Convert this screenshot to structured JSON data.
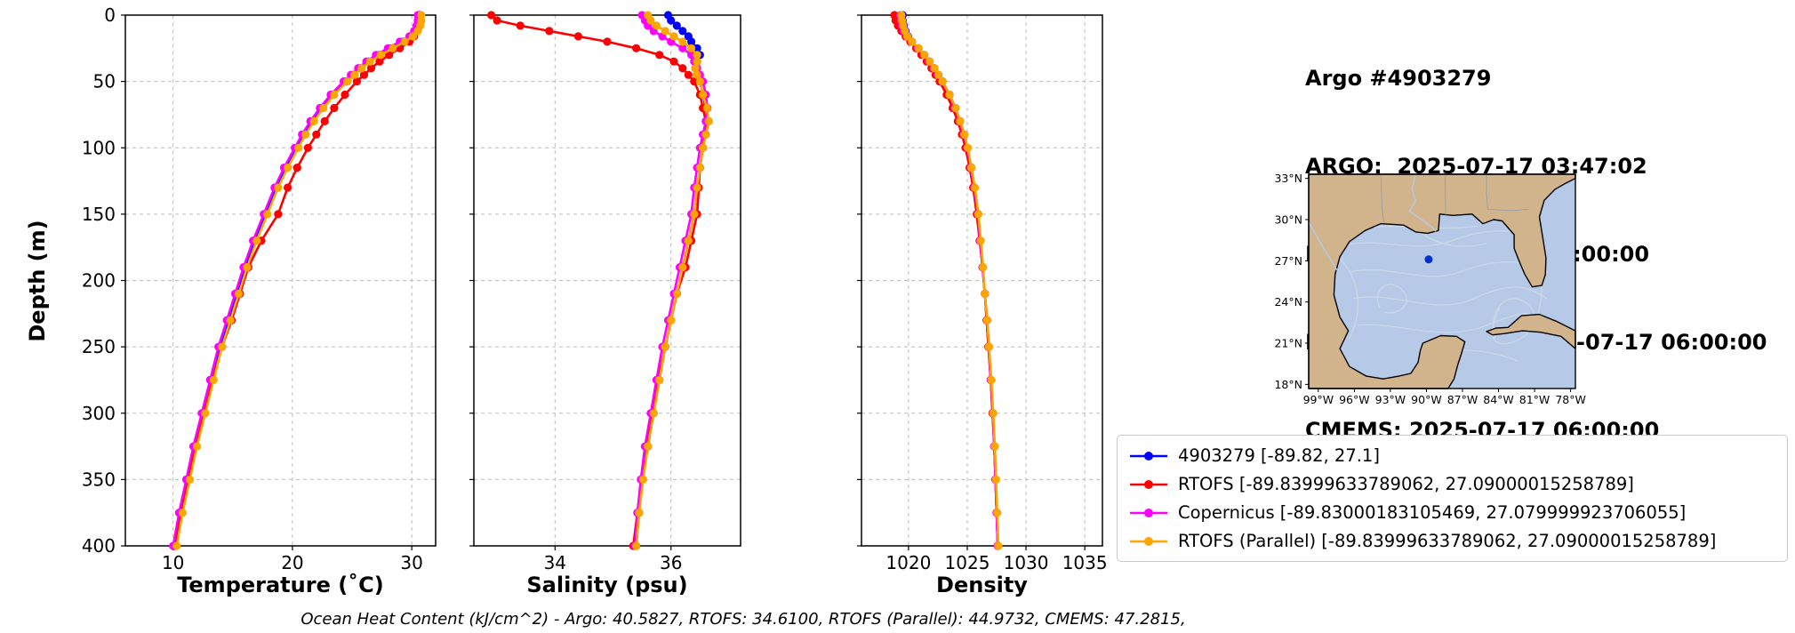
{
  "header": {
    "lines": [
      "Argo #4903279",
      "ARGO:  2025-07-17 03:47:02",
      "RTOFS: 2025-07-17 00:00:00",
      "RTOFS (Parallel): 2025-07-17 06:00:00",
      "CMEMS: 2025-07-17 06:00:00"
    ]
  },
  "axes": {
    "ylabel": "Depth (m)",
    "ylim": [
      0,
      400
    ],
    "depth_ticks": [
      0,
      50,
      100,
      150,
      200,
      250,
      300,
      350,
      400
    ]
  },
  "chart_data": {
    "type": "line",
    "orientation": "vertical-profile",
    "grid": "dashed",
    "depth_m": [
      0,
      4,
      8,
      12,
      16,
      20,
      25,
      30,
      35,
      40,
      45,
      50,
      60,
      70,
      80,
      90,
      100,
      115,
      130,
      150,
      170,
      190,
      210,
      230,
      250,
      275,
      300,
      325,
      350,
      375,
      400
    ],
    "panels": [
      {
        "id": "temperature",
        "xlabel": "Temperature (˚C)",
        "xlim": [
          6,
          32
        ],
        "xticks": [
          10,
          20,
          30
        ]
      },
      {
        "id": "salinity",
        "xlabel": "Salinity (psu)",
        "xlim": [
          32.6,
          37.2
        ],
        "xticks": [
          34,
          36
        ]
      },
      {
        "id": "density",
        "xlabel": "Density",
        "xlim": [
          1016,
          1036.5
        ],
        "xticks": [
          1020,
          1025,
          1030,
          1035
        ]
      }
    ],
    "series": [
      {
        "name": "4903279",
        "color": "#0000ff",
        "temperature": [
          30.7,
          30.7,
          30.6,
          30.4,
          30.0,
          29.3,
          28.3,
          27.3,
          26.4,
          25.7,
          25.1,
          24.5,
          23.4,
          22.5,
          21.7,
          21.0,
          20.4,
          19.5,
          18.7,
          17.8,
          16.9,
          16.1,
          15.4,
          14.7,
          14.0,
          13.3,
          12.6,
          11.9,
          11.3,
          10.7,
          10.2
        ],
        "salinity": [
          35.95,
          36.0,
          36.1,
          36.2,
          36.3,
          36.35,
          36.45,
          36.5,
          36.45,
          36.42,
          36.45,
          36.5,
          36.55,
          36.6,
          36.65,
          36.6,
          36.55,
          36.5,
          36.45,
          36.4,
          36.3,
          36.2,
          36.1,
          36.0,
          35.9,
          35.8,
          35.7,
          35.6,
          35.5,
          35.45,
          35.4
        ],
        "density": [
          1019.5,
          1019.5,
          1019.6,
          1019.75,
          1019.95,
          1020.3,
          1020.85,
          1021.35,
          1021.8,
          1022.2,
          1022.55,
          1022.9,
          1023.5,
          1024.0,
          1024.4,
          1024.75,
          1025.0,
          1025.35,
          1025.6,
          1025.9,
          1026.1,
          1026.3,
          1026.5,
          1026.65,
          1026.8,
          1027.0,
          1027.15,
          1027.3,
          1027.4,
          1027.5,
          1027.6
        ]
      },
      {
        "name": "RTOFS",
        "color": "#ff0000",
        "temperature": [
          30.6,
          30.6,
          30.5,
          30.4,
          30.2,
          29.8,
          29.0,
          28.1,
          27.3,
          26.6,
          26.0,
          25.4,
          24.4,
          23.5,
          22.7,
          22.0,
          21.3,
          20.4,
          19.6,
          18.8,
          17.4,
          16.3,
          15.6,
          14.9,
          14.1,
          13.3,
          12.6,
          11.9,
          11.2,
          10.6,
          10.1
        ],
        "salinity": [
          32.9,
          33.0,
          33.4,
          33.9,
          34.4,
          34.9,
          35.4,
          35.8,
          36.05,
          36.2,
          36.3,
          36.4,
          36.5,
          36.55,
          36.6,
          36.58,
          36.55,
          36.5,
          36.48,
          36.45,
          36.35,
          36.25,
          36.1,
          36.0,
          35.9,
          35.78,
          35.68,
          35.58,
          35.5,
          35.42,
          35.35
        ],
        "density": [
          1018.8,
          1018.9,
          1019.1,
          1019.4,
          1019.75,
          1020.15,
          1020.65,
          1021.1,
          1021.55,
          1021.95,
          1022.3,
          1022.65,
          1023.25,
          1023.75,
          1024.2,
          1024.55,
          1024.85,
          1025.2,
          1025.5,
          1025.8,
          1026.05,
          1026.3,
          1026.5,
          1026.65,
          1026.8,
          1027.0,
          1027.15,
          1027.3,
          1027.4,
          1027.5,
          1027.6
        ]
      },
      {
        "name": "Copernicus",
        "color": "#ff00ff",
        "temperature": [
          30.5,
          30.5,
          30.4,
          30.2,
          29.8,
          29.0,
          28.0,
          27.0,
          26.2,
          25.5,
          24.9,
          24.3,
          23.2,
          22.3,
          21.5,
          20.8,
          20.2,
          19.3,
          18.5,
          17.6,
          16.7,
          15.9,
          15.2,
          14.5,
          13.8,
          13.1,
          12.4,
          11.7,
          11.1,
          10.5,
          10.0
        ],
        "salinity": [
          35.5,
          35.55,
          35.6,
          35.7,
          35.85,
          36.0,
          36.2,
          36.35,
          36.4,
          36.45,
          36.5,
          36.55,
          36.6,
          36.63,
          36.6,
          36.55,
          36.5,
          36.45,
          36.4,
          36.35,
          36.25,
          36.15,
          36.05,
          35.95,
          35.85,
          35.75,
          35.65,
          35.55,
          35.48,
          35.42,
          35.38
        ],
        "density": [
          1019.3,
          1019.35,
          1019.45,
          1019.6,
          1019.85,
          1020.25,
          1020.8,
          1021.3,
          1021.75,
          1022.15,
          1022.5,
          1022.85,
          1023.45,
          1023.95,
          1024.35,
          1024.7,
          1025.0,
          1025.3,
          1025.6,
          1025.9,
          1026.1,
          1026.3,
          1026.5,
          1026.7,
          1026.85,
          1027.0,
          1027.2,
          1027.3,
          1027.4,
          1027.5,
          1027.6
        ]
      },
      {
        "name": "RTOFS (Parallel)",
        "color": "#ffa500",
        "temperature": [
          30.8,
          30.8,
          30.7,
          30.5,
          30.1,
          29.4,
          28.4,
          27.4,
          26.5,
          25.8,
          25.2,
          24.6,
          23.5,
          22.6,
          21.8,
          21.1,
          20.5,
          19.6,
          18.8,
          17.9,
          17.0,
          16.2,
          15.5,
          14.8,
          14.1,
          13.4,
          12.7,
          12.0,
          11.4,
          10.8,
          10.3
        ],
        "salinity": [
          35.6,
          35.65,
          35.75,
          35.9,
          36.05,
          36.2,
          36.35,
          36.45,
          36.45,
          36.42,
          36.45,
          36.5,
          36.55,
          36.62,
          36.65,
          36.6,
          36.55,
          36.5,
          36.45,
          36.4,
          36.3,
          36.2,
          36.1,
          36.0,
          35.9,
          35.8,
          35.7,
          35.6,
          35.52,
          35.45,
          35.4
        ],
        "density": [
          1019.4,
          1019.45,
          1019.55,
          1019.7,
          1019.9,
          1020.3,
          1020.85,
          1021.35,
          1021.8,
          1022.2,
          1022.55,
          1022.9,
          1023.5,
          1024.0,
          1024.4,
          1024.75,
          1025.05,
          1025.35,
          1025.65,
          1025.95,
          1026.15,
          1026.35,
          1026.5,
          1026.7,
          1026.85,
          1027.05,
          1027.2,
          1027.35,
          1027.45,
          1027.55,
          1027.65
        ]
      }
    ]
  },
  "map": {
    "extent": {
      "lon": [
        -99.8,
        -77.6
      ],
      "lat": [
        17.7,
        33.3
      ]
    },
    "lon_tick_values": [
      -99,
      -96,
      -93,
      -90,
      -87,
      -84,
      -81,
      -78
    ],
    "lon_tick_labels": [
      "99°W",
      "96°W",
      "93°W",
      "90°W",
      "87°W",
      "84°W",
      "81°W",
      "78°W"
    ],
    "lat_tick_values": [
      33,
      30,
      27,
      24,
      21,
      18
    ],
    "lat_tick_labels": [
      "33°N",
      "30°N",
      "27°N",
      "24°N",
      "21°N",
      "18°N"
    ],
    "float_position": {
      "lon": -89.82,
      "lat": 27.1
    },
    "colors": {
      "land": "#d2b48c",
      "water": "#b6c9e6",
      "streamline": "#ccd9ea",
      "border": "#9aa0a6",
      "river": "#b6c9e6",
      "coast": "#000000",
      "float": "#0033cc"
    }
  },
  "legend": {
    "entries": [
      {
        "label": "4903279 [-89.82, 27.1]",
        "color": "#0000ff"
      },
      {
        "label": "RTOFS [-89.83999633789062, 27.09000015258789]",
        "color": "#ff0000"
      },
      {
        "label": "Copernicus [-89.83000183105469, 27.079999923706055]",
        "color": "#ff00ff"
      },
      {
        "label": "RTOFS (Parallel) [-89.83999633789062, 27.09000015258789]",
        "color": "#ffa500"
      }
    ]
  },
  "footer": {
    "ohc_text": "Ocean Heat Content (kJ/cm^2) - Argo: 40.5827,  RTOFS: 34.6100,  RTOFS (Parallel): 44.9732,  CMEMS: 47.2815,"
  }
}
